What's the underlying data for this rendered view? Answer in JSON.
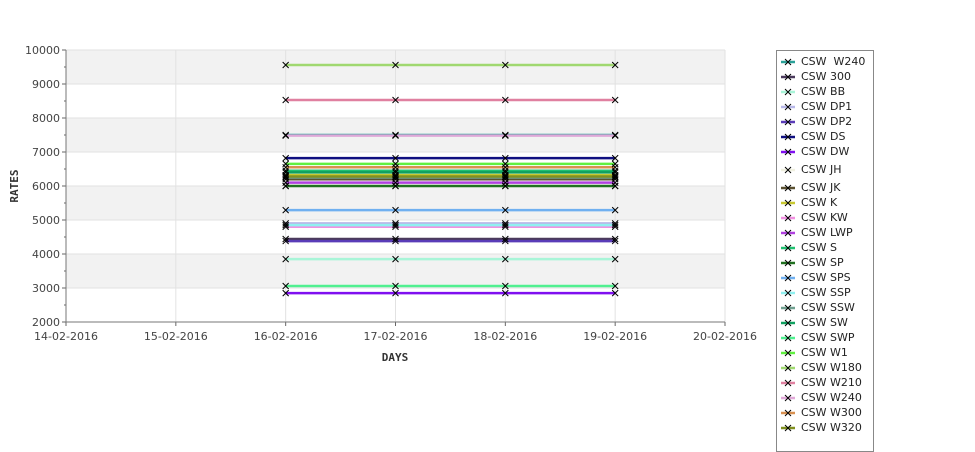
{
  "chart_data": {
    "type": "line",
    "title": "",
    "xlabel": "DAYS",
    "ylabel": "RATES",
    "xlim": [
      "14-02-2016",
      "20-02-2016"
    ],
    "ylim": [
      2000,
      10000
    ],
    "x_ticks": [
      "14-02-2016",
      "15-02-2016",
      "16-02-2016",
      "17-02-2016",
      "18-02-2016",
      "19-02-2016",
      "20-02-2016"
    ],
    "y_ticks": [
      "2000",
      "3000",
      "4000",
      "5000",
      "6000",
      "7000",
      "8000",
      "9000",
      "10000"
    ],
    "x": [
      "16-02-2016",
      "17-02-2016",
      "18-02-2016",
      "19-02-2016"
    ],
    "legend_position": "right",
    "series": [
      {
        "name": "CSW  W240",
        "color": "#2aa198",
        "values": [
          7500,
          7500,
          7500,
          7500
        ]
      },
      {
        "name": "CSW 300",
        "color": "#4b3a5c",
        "values": [
          4440,
          4440,
          4440,
          4440
        ]
      },
      {
        "name": "CSW BB",
        "color": "#a8f5d8",
        "values": [
          3850,
          3850,
          3850,
          3850
        ]
      },
      {
        "name": "CSW DP1",
        "color": "#b8b8e8",
        "values": [
          4900,
          4900,
          4900,
          4900
        ]
      },
      {
        "name": "CSW DP2",
        "color": "#5a3cb8",
        "values": [
          4380,
          4380,
          4380,
          4380
        ]
      },
      {
        "name": "CSW DS",
        "color": "#101080",
        "values": [
          6820,
          6820,
          6820,
          6820
        ]
      },
      {
        "name": "CSW DW",
        "color": "#8010f0",
        "values": [
          2850,
          2850,
          2850,
          2850
        ]
      },
      {
        "name": "CSW JH",
        "color": "#f0f0e0",
        "values": [
          6000,
          6000,
          6000,
          6000
        ]
      },
      {
        "name": "CSW JK",
        "color": "#5a5030",
        "values": [
          6200,
          6200,
          6200,
          6200
        ]
      },
      {
        "name": "CSW K",
        "color": "#c8c830",
        "values": [
          6320,
          6320,
          6320,
          6320
        ]
      },
      {
        "name": "CSW KW",
        "color": "#f090e0",
        "values": [
          4800,
          4800,
          4800,
          4800
        ]
      },
      {
        "name": "CSW LWP",
        "color": "#b040e0",
        "values": [
          6100,
          6100,
          6100,
          6100
        ]
      },
      {
        "name": "CSW S",
        "color": "#20c070",
        "values": [
          6450,
          6450,
          6450,
          6450
        ]
      },
      {
        "name": "CSW SP",
        "color": "#207020",
        "values": [
          6000,
          6000,
          6000,
          6000
        ]
      },
      {
        "name": "CSW SPS",
        "color": "#70b0f0",
        "values": [
          5290,
          5290,
          5290,
          5290
        ]
      },
      {
        "name": "CSW SSP",
        "color": "#90f0f0",
        "values": [
          4850,
          4850,
          4850,
          4850
        ]
      },
      {
        "name": "CSW SSW",
        "color": "#70a090",
        "values": [
          6250,
          6250,
          6250,
          6250
        ]
      },
      {
        "name": "CSW SW",
        "color": "#10a060",
        "values": [
          6400,
          6400,
          6400,
          6400
        ]
      },
      {
        "name": "CSW SWP",
        "color": "#50f090",
        "values": [
          3060,
          3060,
          3060,
          3060
        ]
      },
      {
        "name": "CSW W1",
        "color": "#60f040",
        "values": [
          6650,
          6650,
          6650,
          6650
        ]
      },
      {
        "name": "CSW W180",
        "color": "#a0d870",
        "values": [
          9560,
          9560,
          9560,
          9560
        ]
      },
      {
        "name": "CSW W210",
        "color": "#e080a0",
        "values": [
          8530,
          8530,
          8530,
          8530
        ]
      },
      {
        "name": "CSW W240",
        "color": "#e0a8d8",
        "values": [
          7480,
          7480,
          7480,
          7480
        ]
      },
      {
        "name": "CSW W300",
        "color": "#d89050",
        "values": [
          6550,
          6550,
          6550,
          6550
        ]
      },
      {
        "name": "CSW W320",
        "color": "#809020",
        "values": [
          6280,
          6280,
          6280,
          6280
        ]
      }
    ]
  }
}
